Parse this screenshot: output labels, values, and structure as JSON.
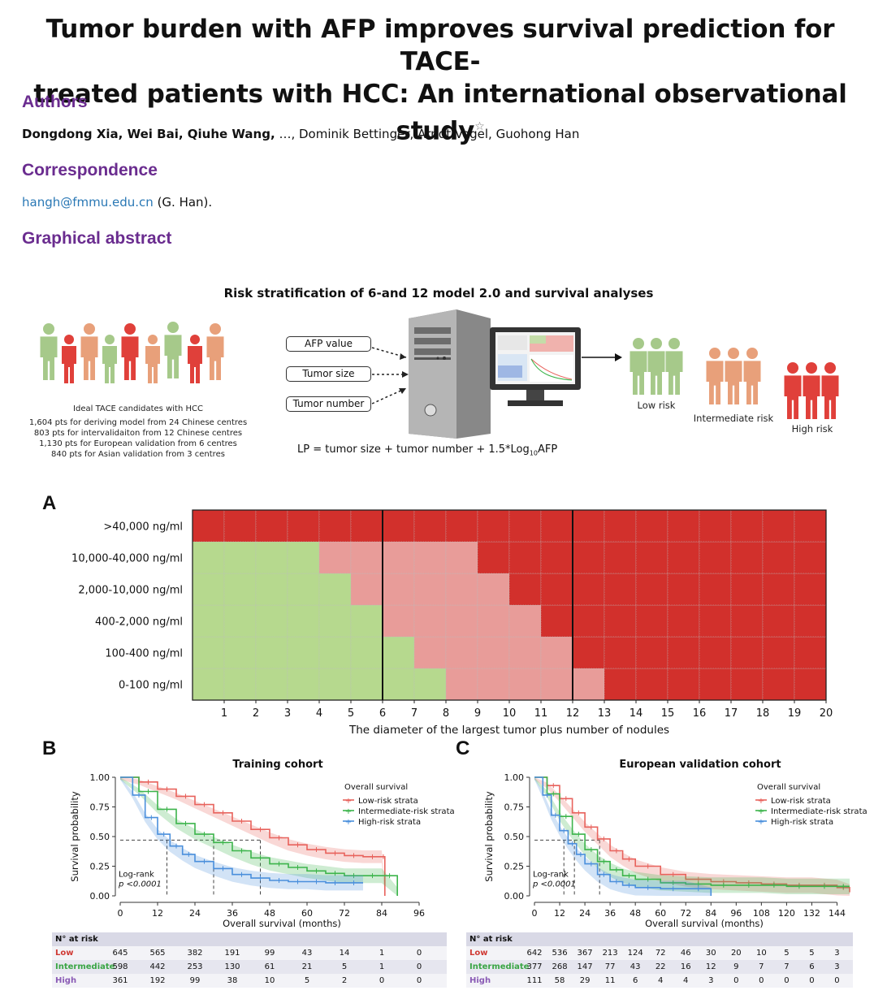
{
  "title": {
    "line1": "Tumor burden with AFP improves survival prediction for TACE-",
    "line2": "treated patients with HCC: An international observational study",
    "star": "☆"
  },
  "authors": {
    "heading": "Authors",
    "bold_names": "Dongdong Xia, Wei Bai, Qiuhe Wang,",
    "rest": " …, Dominik Bettinger, Arndt Vogel, Guohong Han"
  },
  "correspondence": {
    "heading": "Correspondence",
    "email": "hangh@fmmu.edu.cn",
    "name": " (G. Han)."
  },
  "graphical_abstract": {
    "heading": "Graphical abstract",
    "title": "Risk stratification of 6-and 12 model 2.0 and survival analyses",
    "caption_lines": [
      "Ideal TACE candidates with HCC",
      "1,604 pts for deriving model from 24 Chinese centres",
      "803 pts for intervalidaiton from 12 Chinese centres",
      "1,130 pts for European validation from 6 centres",
      "840 pts for Asian validation from 3 centres"
    ],
    "input_boxes": [
      "AFP value",
      "Tumor size",
      "Tumor number"
    ],
    "risk_labels": {
      "low": "Low risk",
      "intermediate": "Intermediate risk",
      "high": "High risk"
    },
    "formula_pre": "LP = tumor size + tumor number + 1.5*Log",
    "formula_sub": "10",
    "formula_post": "AFP",
    "colors": {
      "green": "#a6c98a",
      "red": "#e0403a",
      "peach": "#e8a07a"
    }
  },
  "panels": {
    "a": "A",
    "b": "B",
    "c": "C"
  },
  "chart_data": [
    {
      "type": "heatmap",
      "panel": "A",
      "xlabel": "The diameter of the largest tumor plus number of nodules",
      "x_ticks": [
        "1",
        "2",
        "3",
        "4",
        "5",
        "6",
        "7",
        "8",
        "9",
        "10",
        "11",
        "12",
        "13",
        "14",
        "15",
        "16",
        "17",
        "18",
        "19",
        "20"
      ],
      "y_categories": [
        "0-100 ng/ml",
        "100-400 ng/ml",
        "400-2,000 ng/ml",
        "2,000-10,000 ng/ml",
        "10,000-40,000 ng/ml",
        ">40,000 ng/ml"
      ],
      "legend_colors": {
        "low": "#b6d98e",
        "intermediate": "#e89c99",
        "high": "#d2302c"
      },
      "cutoff_lines_at": [
        6,
        12
      ],
      "green_upto_by_row": [
        8,
        7,
        6,
        5,
        4,
        0
      ],
      "red_from_by_row": [
        14,
        13,
        12,
        11,
        10,
        1
      ]
    },
    {
      "type": "line",
      "panel": "B",
      "title": "Training cohort",
      "xlabel": "Overall survival (months)",
      "ylabel": "Survival probability",
      "x_ticks": [
        0,
        12,
        24,
        36,
        48,
        60,
        72,
        84,
        96
      ],
      "y_ticks": [
        "0.00",
        "0.25",
        "0.50",
        "0.75",
        "1.00"
      ],
      "xlim": [
        0,
        96
      ],
      "ylim": [
        0,
        1
      ],
      "legend_title": "Overall survival",
      "annotation": "Log-rank",
      "p_value": "p <0.0001",
      "medians": [
        15,
        30,
        45
      ],
      "series": [
        {
          "name": "Low-risk strata",
          "color": "#e8625c",
          "x": [
            0,
            6,
            12,
            18,
            24,
            30,
            36,
            42,
            48,
            54,
            60,
            66,
            72,
            78,
            84,
            85
          ],
          "y": [
            1.0,
            0.96,
            0.9,
            0.84,
            0.77,
            0.7,
            0.63,
            0.56,
            0.49,
            0.43,
            0.39,
            0.36,
            0.34,
            0.33,
            0.33,
            0.0
          ]
        },
        {
          "name": "Intermediate-risk strata",
          "color": "#3cb44b",
          "x": [
            0,
            6,
            12,
            18,
            24,
            30,
            36,
            42,
            48,
            54,
            60,
            66,
            72,
            78,
            84,
            89
          ],
          "y": [
            1.0,
            0.88,
            0.73,
            0.61,
            0.52,
            0.45,
            0.38,
            0.32,
            0.27,
            0.24,
            0.21,
            0.19,
            0.17,
            0.17,
            0.17,
            0.0
          ]
        },
        {
          "name": "High-risk strata",
          "color": "#4a8fdc",
          "x": [
            0,
            4,
            8,
            12,
            16,
            20,
            24,
            30,
            36,
            42,
            48,
            54,
            60,
            66,
            72,
            78
          ],
          "y": [
            1.0,
            0.85,
            0.66,
            0.52,
            0.42,
            0.35,
            0.29,
            0.23,
            0.18,
            0.15,
            0.13,
            0.12,
            0.12,
            0.11,
            0.11,
            0.11
          ]
        }
      ],
      "risk_table": {
        "header": "N° at risk",
        "rows": [
          {
            "label": "Low",
            "color": "#d03a34",
            "values": [
              "645",
              "565",
              "382",
              "191",
              "99",
              "43",
              "14",
              "1",
              "0"
            ]
          },
          {
            "label": "Intermediate",
            "color": "#3aa545",
            "values": [
              "598",
              "442",
              "253",
              "130",
              "61",
              "21",
              "5",
              "1",
              "0"
            ]
          },
          {
            "label": "High",
            "color": "#8a5bb5",
            "values": [
              "361",
              "192",
              "99",
              "38",
              "10",
              "5",
              "2",
              "0",
              "0"
            ]
          }
        ]
      }
    },
    {
      "type": "line",
      "panel": "C",
      "title": "European validation cohort",
      "xlabel": "Overall survival (months)",
      "ylabel": "Survival probability",
      "x_ticks": [
        0,
        12,
        24,
        36,
        48,
        60,
        72,
        84,
        96,
        108,
        120,
        132,
        144
      ],
      "y_ticks": [
        "0.00",
        "0.25",
        "0.50",
        "0.75",
        "1.00"
      ],
      "xlim": [
        0,
        150
      ],
      "ylim": [
        0,
        1
      ],
      "legend_title": "Overall survival",
      "annotation": "Log-rank",
      "p_value": "p <0.0001",
      "medians": [
        14,
        19,
        31
      ],
      "series": [
        {
          "name": "Low-risk strata",
          "color": "#e8625c",
          "x": [
            0,
            6,
            12,
            18,
            24,
            30,
            36,
            42,
            48,
            60,
            72,
            84,
            96,
            108,
            120,
            132,
            144,
            150
          ],
          "y": [
            1.0,
            0.93,
            0.82,
            0.7,
            0.58,
            0.48,
            0.38,
            0.31,
            0.25,
            0.18,
            0.14,
            0.12,
            0.11,
            0.1,
            0.09,
            0.09,
            0.07,
            0.03
          ]
        },
        {
          "name": "Intermediate-risk strata",
          "color": "#3cb44b",
          "x": [
            0,
            6,
            12,
            18,
            24,
            30,
            36,
            42,
            48,
            60,
            72,
            84,
            96,
            108,
            120,
            132,
            144,
            150
          ],
          "y": [
            1.0,
            0.86,
            0.67,
            0.52,
            0.39,
            0.29,
            0.22,
            0.17,
            0.14,
            0.11,
            0.1,
            0.09,
            0.09,
            0.09,
            0.08,
            0.08,
            0.08,
            0.08
          ]
        },
        {
          "name": "High-risk strata",
          "color": "#4a8fdc",
          "x": [
            0,
            4,
            8,
            12,
            16,
            20,
            24,
            30,
            36,
            42,
            48,
            60,
            72,
            84
          ],
          "y": [
            1.0,
            0.85,
            0.68,
            0.55,
            0.44,
            0.35,
            0.27,
            0.18,
            0.12,
            0.09,
            0.07,
            0.06,
            0.06,
            0.0
          ]
        }
      ],
      "risk_table": {
        "header": "N° at risk",
        "rows": [
          {
            "label": "Low",
            "color": "#d03a34",
            "values": [
              "642",
              "536",
              "367",
              "213",
              "124",
              "72",
              "46",
              "30",
              "20",
              "10",
              "5",
              "5",
              "3"
            ]
          },
          {
            "label": "Intermediate",
            "color": "#3aa545",
            "values": [
              "377",
              "268",
              "147",
              "77",
              "43",
              "22",
              "16",
              "12",
              "9",
              "7",
              "7",
              "6",
              "3"
            ]
          },
          {
            "label": "High",
            "color": "#8a5bb5",
            "values": [
              "111",
              "58",
              "29",
              "11",
              "6",
              "4",
              "4",
              "3",
              "0",
              "0",
              "0",
              "0",
              "0"
            ]
          }
        ]
      }
    }
  ]
}
